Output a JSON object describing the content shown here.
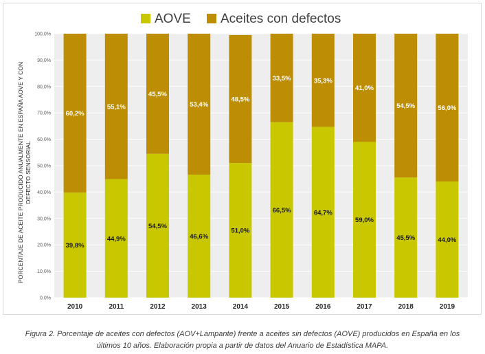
{
  "chart_data": {
    "type": "bar",
    "stacked": true,
    "percent_stacked": true,
    "categories": [
      "2010",
      "2011",
      "2012",
      "2013",
      "2014",
      "2015",
      "2016",
      "2017",
      "2018",
      "2019"
    ],
    "series": [
      {
        "name": "AOVE",
        "color": "#c9c800",
        "values": [
          39.8,
          44.9,
          54.5,
          46.6,
          51.0,
          66.5,
          64.7,
          59.0,
          45.5,
          44.0
        ],
        "labels": [
          "39,8%",
          "44,9%",
          "54,5%",
          "46,6%",
          "51,0%",
          "66,5%",
          "64,7%",
          "59,0%",
          "45,5%",
          "44,0%"
        ]
      },
      {
        "name": "Aceites con defectos",
        "color": "#bd8e04",
        "values": [
          60.2,
          55.1,
          45.5,
          53.4,
          48.5,
          33.5,
          35.3,
          41.0,
          54.5,
          56.0
        ],
        "labels": [
          "60,2%",
          "55,1%",
          "45,5%",
          "53,4%",
          "48,5%",
          "33,5%",
          "35,3%",
          "41,0%",
          "54,5%",
          "56,0%"
        ]
      }
    ],
    "ylabel": "PORCENTAJE DE ACEITE PRODUCIDO ANUALMENTE EN ESPAÑA AOVE Y CON DEFECTO SENSORIAL",
    "ylabel_lines": [
      "PORCENTAJE DE ACEITE PRODUCIDO ANUALMENTE EN ESPAÑA AOVE Y CON",
      "DEFECTO SENSORIAL"
    ],
    "ylim": [
      0,
      100
    ],
    "yticks": [
      0,
      10,
      20,
      30,
      40,
      50,
      60,
      70,
      80,
      90,
      100
    ],
    "ytick_labels": [
      "0,0%",
      "10,0%",
      "20,0%",
      "30,0%",
      "40,0%",
      "50,0%",
      "60,0%",
      "70,0%",
      "80,0%",
      "90,0%",
      "100,0%"
    ],
    "grid": true,
    "legend_position": "top-center",
    "background_color": "#eeeeee"
  },
  "caption": {
    "line1": "Figura 2. Porcentaje de aceites con defectos (AOV+Lampante) frente a aceites sin defectos (AOVE) producidos en España en los",
    "line2": "últimos 10 años. Elaboración propia a partir de datos del Anuario de Estadística MAPA."
  }
}
